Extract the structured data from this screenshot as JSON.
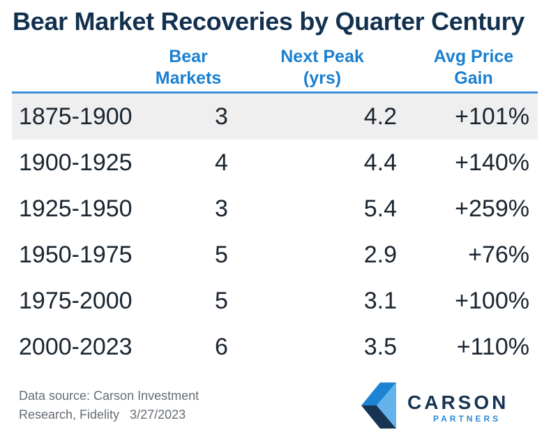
{
  "title": "Bear Market Recoveries by Quarter Century",
  "chart_data": {
    "type": "table",
    "columns": [
      {
        "line1": "",
        "line2": ""
      },
      {
        "line1": "Bear",
        "line2": "Markets"
      },
      {
        "line1": "Next Peak",
        "line2": "(yrs)"
      },
      {
        "line1": "Avg Price",
        "line2": "Gain"
      }
    ],
    "rows": [
      {
        "period": "1875-1900",
        "bear_markets": "3",
        "next_peak": "4.2",
        "avg_gain": "+101%"
      },
      {
        "period": "1900-1925",
        "bear_markets": "4",
        "next_peak": "4.4",
        "avg_gain": "+140%"
      },
      {
        "period": "1925-1950",
        "bear_markets": "3",
        "next_peak": "5.4",
        "avg_gain": "+259%"
      },
      {
        "period": "1950-1975",
        "bear_markets": "5",
        "next_peak": "2.9",
        "avg_gain": "+76%"
      },
      {
        "period": "1975-2000",
        "bear_markets": "5",
        "next_peak": "3.1",
        "avg_gain": "+100%"
      },
      {
        "period": "2000-2023",
        "bear_markets": "6",
        "next_peak": "3.5",
        "avg_gain": "+110%"
      }
    ]
  },
  "source": {
    "line1": "Data source: Carson Investment",
    "line2": "Research, Fidelity   3/27/2023"
  },
  "logo": {
    "name": "CARSON",
    "sub": "PARTNERS"
  },
  "colors": {
    "title": "#12304f",
    "header": "#1a7fd0",
    "rule": "#3b8fdd",
    "shade": "#efefef"
  }
}
